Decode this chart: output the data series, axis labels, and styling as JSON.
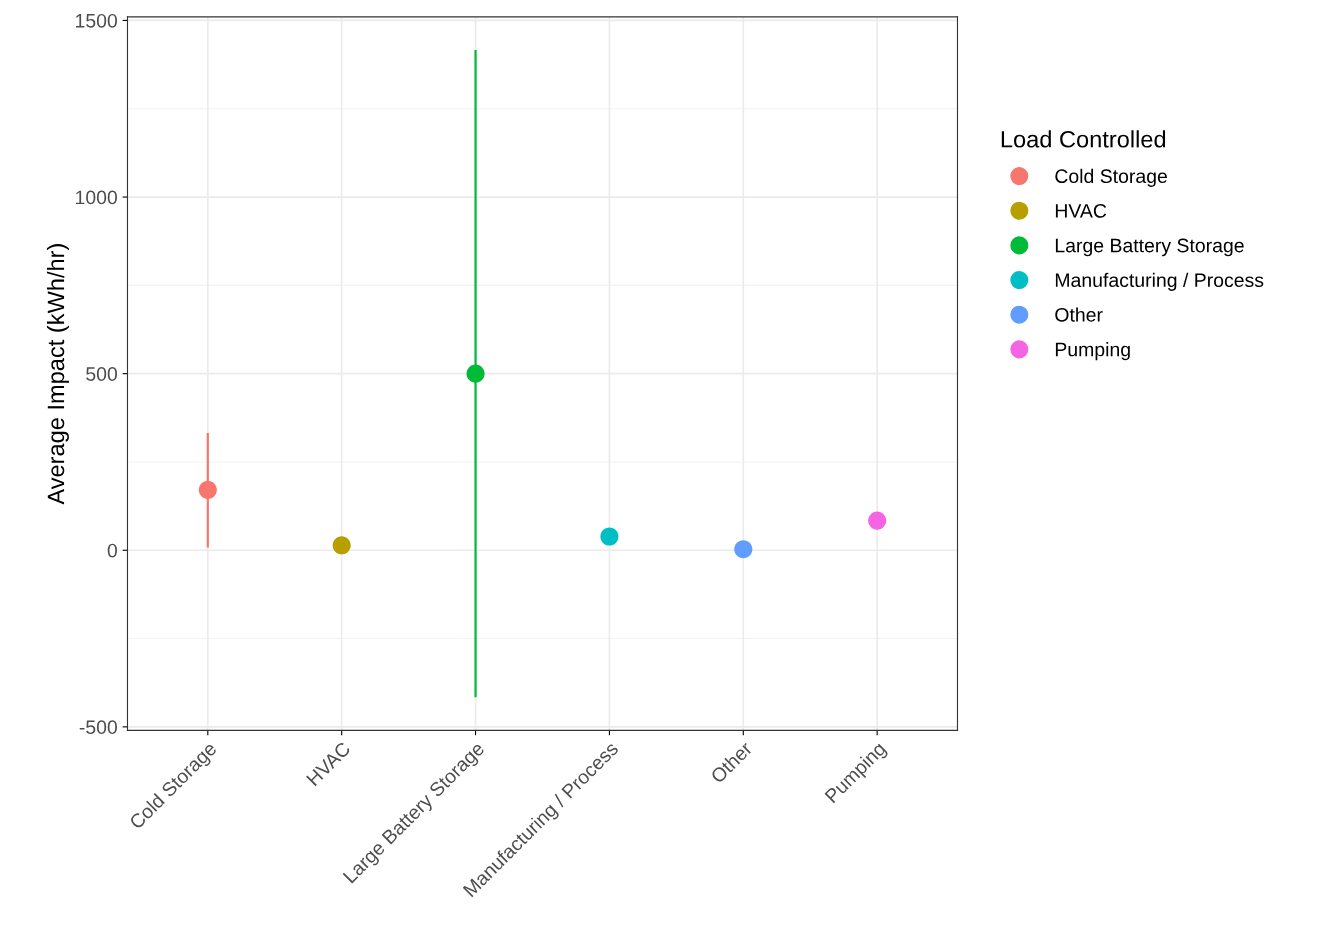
{
  "chart_data": {
    "type": "scatter",
    "ylabel": "Average Impact (kWh/hr)",
    "legend_title": "Load Controlled",
    "categories": [
      "Cold Storage",
      "HVAC",
      "Large Battery Storage",
      "Manufacturing / Process",
      "Other",
      "Pumping"
    ],
    "series": [
      {
        "name": "Cold Storage",
        "color": "#f8766d",
        "values": [
          171,
          null,
          null,
          null,
          null,
          null
        ],
        "errors": [
          [
            8,
            332
          ],
          null,
          null,
          null,
          null,
          null
        ]
      },
      {
        "name": "HVAC",
        "color": "#b79f00",
        "values": [
          null,
          14,
          null,
          null,
          null,
          null
        ]
      },
      {
        "name": "Large Battery Storage",
        "color": "#00ba38",
        "values": [
          null,
          null,
          500,
          null,
          null,
          null
        ],
        "errors": [
          null,
          null,
          [
            -416,
            1416
          ],
          null,
          null,
          null
        ]
      },
      {
        "name": "Manufacturing / Process",
        "color": "#00bfc4",
        "values": [
          null,
          null,
          null,
          39,
          null,
          null
        ]
      },
      {
        "name": "Other",
        "color": "#619cff",
        "values": [
          null,
          null,
          null,
          null,
          3,
          null
        ]
      },
      {
        "name": "Pumping",
        "color": "#f564e3",
        "values": [
          null,
          null,
          null,
          null,
          null,
          84
        ]
      }
    ],
    "ylim": [
      -510,
      1510
    ],
    "yticks": [
      -500,
      0,
      500,
      1000,
      1500
    ],
    "grid": true,
    "legend": "right",
    "marker": "circle"
  }
}
